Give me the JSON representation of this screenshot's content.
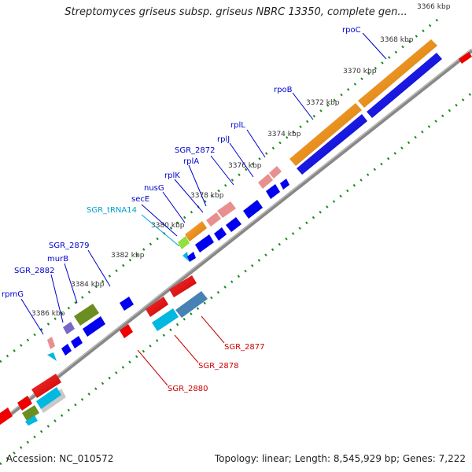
{
  "title": "Streptomyces griseus subsp. griseus NBRC 13350, complete gen...",
  "footer": {
    "accession": "Accession: NC_010572",
    "summary": "Topology: linear; Length: 8,545,929 bp; Genes: 7,222"
  },
  "ticks": [
    "3366 kbp",
    "3368 kbp",
    "3370 kbp",
    "3372 kbp",
    "3374 kbp",
    "3376 kbp",
    "3378 kbp",
    "3380 kbp",
    "3382 kbp",
    "3384 kbp",
    "3386 kbp"
  ],
  "labels_top": [
    {
      "text": "rpoC",
      "color": "#0000cc"
    },
    {
      "text": "rpoB",
      "color": "#0000cc"
    },
    {
      "text": "rplL",
      "color": "#0000cc"
    },
    {
      "text": "rplJ",
      "color": "#0000cc"
    },
    {
      "text": "SGR_2872",
      "color": "#0000cc"
    },
    {
      "text": "rplA",
      "color": "#0000cc"
    },
    {
      "text": "rplK",
      "color": "#0000cc"
    },
    {
      "text": "nusG",
      "color": "#0000cc"
    },
    {
      "text": "secE",
      "color": "#0000cc"
    },
    {
      "text": "SGR_tRNA14",
      "color": "#00a0d0"
    },
    {
      "text": "SGR_2879",
      "color": "#0000cc"
    },
    {
      "text": "murB",
      "color": "#0000cc"
    },
    {
      "text": "SGR_2882",
      "color": "#0000cc"
    },
    {
      "text": "rpmG",
      "color": "#0000cc"
    }
  ],
  "labels_bottom": [
    {
      "text": "SGR_2877",
      "color": "#cc0000"
    },
    {
      "text": "SGR_2878",
      "color": "#cc0000"
    },
    {
      "text": "SGR_2880",
      "color": "#cc0000"
    }
  ],
  "colors": {
    "forward_cds": "#0000ee",
    "reverse_cds": "#ee0000",
    "orange_gene": "#f08c00",
    "pink_gene": "#e89090",
    "olive_gene": "#6b8e23",
    "cyan_gene": "#00b8e0",
    "steel_gene": "#4682b4",
    "tick_green": "#1a8a1a",
    "axis": "#888888"
  }
}
